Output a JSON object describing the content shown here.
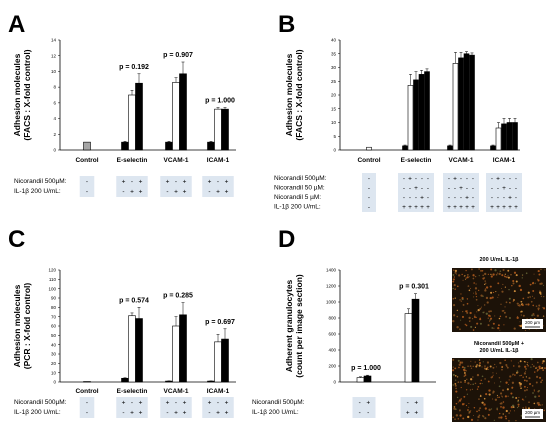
{
  "colors": {
    "white": "#ffffff",
    "black": "#000000",
    "gray": "#a6a6a6",
    "table_bg": "#dde6f0",
    "micro_bg": "#1c1208"
  },
  "panels": [
    {
      "letter": "A",
      "ylabel_lines": [
        "Adhesion molecules",
        "(FACS : X-fold control)"
      ],
      "conditions": [
        "Nicorandil 500µM:",
        "IL-1β 200 U/mL:"
      ],
      "chart_data": {
        "type": "bar",
        "ylim": [
          0,
          14
        ],
        "yticks": [
          0,
          2,
          4,
          6,
          8,
          10,
          12,
          14
        ],
        "groups": [
          {
            "label": "Control",
            "pvalue": "",
            "bars": [
              {
                "value": 1.0,
                "error": 0,
                "fill": "gray"
              }
            ],
            "signs": [
              [
                "-"
              ],
              [
                "-"
              ]
            ]
          },
          {
            "label": "E-selectin",
            "pvalue": "p = 0.192",
            "bars": [
              {
                "value": 1.0,
                "error": 0.1,
                "fill": "black"
              },
              {
                "value": 7.0,
                "error": 0.6,
                "fill": "white"
              },
              {
                "value": 8.5,
                "error": 1.2,
                "fill": "black"
              }
            ],
            "signs": [
              [
                "+",
                "-",
                "+"
              ],
              [
                "-",
                "+",
                "+"
              ]
            ]
          },
          {
            "label": "VCAM-1",
            "pvalue": "p = 0.907",
            "bars": [
              {
                "value": 1.0,
                "error": 0.1,
                "fill": "black"
              },
              {
                "value": 8.6,
                "error": 0.6,
                "fill": "white"
              },
              {
                "value": 9.7,
                "error": 1.5,
                "fill": "black"
              }
            ],
            "signs": [
              [
                "+",
                "-",
                "+"
              ],
              [
                "-",
                "+",
                "+"
              ]
            ]
          },
          {
            "label": "ICAM-1",
            "pvalue": "p = 1.000",
            "bars": [
              {
                "value": 1.0,
                "error": 0.1,
                "fill": "black"
              },
              {
                "value": 5.2,
                "error": 0.2,
                "fill": "white"
              },
              {
                "value": 5.2,
                "error": 0.2,
                "fill": "black"
              }
            ],
            "signs": [
              [
                "+",
                "-",
                "+"
              ],
              [
                "-",
                "+",
                "+"
              ]
            ]
          }
        ]
      }
    },
    {
      "letter": "B",
      "ylabel_lines": [
        "Adhesion molecules",
        "(FACS : X-fold control)"
      ],
      "conditions": [
        "Nicorandil 500µM:",
        "Nicorandil 50 µM:",
        "Nicorandil 5 µM:",
        "IL-1β 200 U/mL:"
      ],
      "chart_data": {
        "type": "bar",
        "ylim": [
          0,
          40
        ],
        "yticks": [
          0,
          5,
          10,
          15,
          20,
          25,
          30,
          35,
          40
        ],
        "groups": [
          {
            "label": "Control",
            "pvalue": "",
            "bars": [
              {
                "value": 1.0,
                "error": 0,
                "fill": "white"
              }
            ],
            "signs": [
              [
                "-"
              ],
              [
                "-"
              ],
              [
                "-"
              ],
              [
                "-"
              ]
            ]
          },
          {
            "label": "E-selectin",
            "pvalue": "",
            "bars": [
              {
                "value": 1.5,
                "error": 0.3,
                "fill": "black"
              },
              {
                "value": 23.5,
                "error": 4.0,
                "fill": "white"
              },
              {
                "value": 25.5,
                "error": 3.0,
                "fill": "black"
              },
              {
                "value": 27.5,
                "error": 1.5,
                "fill": "black"
              },
              {
                "value": 28.5,
                "error": 1.0,
                "fill": "black"
              }
            ],
            "signs": [
              [
                "-",
                "+",
                "-",
                "-",
                "-"
              ],
              [
                "-",
                "-",
                "+",
                "-",
                "-"
              ],
              [
                "-",
                "-",
                "-",
                "+",
                "-"
              ],
              [
                "+",
                "+",
                "+",
                "+",
                "+"
              ]
            ]
          },
          {
            "label": "VCAM-1",
            "pvalue": "",
            "bars": [
              {
                "value": 1.5,
                "error": 0.3,
                "fill": "black"
              },
              {
                "value": 31.5,
                "error": 4.0,
                "fill": "white"
              },
              {
                "value": 33.5,
                "error": 2.0,
                "fill": "black"
              },
              {
                "value": 35.0,
                "error": 0.8,
                "fill": "black"
              },
              {
                "value": 34.5,
                "error": 0.8,
                "fill": "black"
              }
            ],
            "signs": [
              [
                "-",
                "+",
                "-",
                "-",
                "-"
              ],
              [
                "-",
                "-",
                "+",
                "-",
                "-"
              ],
              [
                "-",
                "-",
                "-",
                "+",
                "-"
              ],
              [
                "+",
                "+",
                "+",
                "+",
                "+"
              ]
            ]
          },
          {
            "label": "ICAM-1",
            "pvalue": "",
            "bars": [
              {
                "value": 1.5,
                "error": 0.3,
                "fill": "black"
              },
              {
                "value": 8.0,
                "error": 2.0,
                "fill": "white"
              },
              {
                "value": 9.5,
                "error": 2.0,
                "fill": "black"
              },
              {
                "value": 10.0,
                "error": 1.5,
                "fill": "black"
              },
              {
                "value": 10.0,
                "error": 1.5,
                "fill": "black"
              }
            ],
            "signs": [
              [
                "-",
                "+",
                "-",
                "-",
                "-"
              ],
              [
                "-",
                "-",
                "+",
                "-",
                "-"
              ],
              [
                "-",
                "-",
                "-",
                "+",
                "-"
              ],
              [
                "+",
                "+",
                "+",
                "+",
                "+"
              ]
            ]
          }
        ]
      }
    },
    {
      "letter": "C",
      "ylabel_lines": [
        "Adhesion molecules",
        "(PCR : X-fold control)"
      ],
      "conditions": [
        "Nicorandil 500µM:",
        "IL-1β 200 U/mL:"
      ],
      "chart_data": {
        "type": "bar",
        "ylim": [
          0,
          120
        ],
        "yticks": [
          0,
          10,
          20,
          30,
          40,
          50,
          60,
          70,
          80,
          90,
          100,
          110,
          120
        ],
        "groups": [
          {
            "label": "Control",
            "pvalue": "",
            "bars": [
              {
                "value": 0.5,
                "error": 0,
                "fill": "gray"
              }
            ],
            "signs": [
              [
                "-"
              ],
              [
                "-"
              ]
            ]
          },
          {
            "label": "E-selectin",
            "pvalue": "p = 0.574",
            "bars": [
              {
                "value": 4.0,
                "error": 0.5,
                "fill": "black"
              },
              {
                "value": 71.0,
                "error": 3.0,
                "fill": "white"
              },
              {
                "value": 68.0,
                "error": 12.0,
                "fill": "black"
              }
            ],
            "signs": [
              [
                "+",
                "-",
                "+"
              ],
              [
                "-",
                "+",
                "+"
              ]
            ]
          },
          {
            "label": "VCAM-1",
            "pvalue": "p = 0.285",
            "bars": [
              {
                "value": 1.0,
                "error": 0.2,
                "fill": "black"
              },
              {
                "value": 60.0,
                "error": 10.0,
                "fill": "white"
              },
              {
                "value": 72.0,
                "error": 13.0,
                "fill": "black"
              }
            ],
            "signs": [
              [
                "+",
                "-",
                "+"
              ],
              [
                "-",
                "+",
                "+"
              ]
            ]
          },
          {
            "label": "ICAM-1",
            "pvalue": "p = 0.697",
            "bars": [
              {
                "value": 1.0,
                "error": 0.2,
                "fill": "black"
              },
              {
                "value": 43.0,
                "error": 8.0,
                "fill": "white"
              },
              {
                "value": 46.0,
                "error": 11.0,
                "fill": "black"
              }
            ],
            "signs": [
              [
                "+",
                "-",
                "+"
              ],
              [
                "-",
                "+",
                "+"
              ]
            ]
          }
        ]
      }
    },
    {
      "letter": "D",
      "ylabel_lines": [
        "Adherent granulocytes",
        "(count per image section)"
      ],
      "conditions": [
        "Nicorandil 500µM:",
        "IL-1β 200 U/mL:"
      ],
      "chart_data": {
        "type": "bar",
        "ylim": [
          0,
          1400
        ],
        "yticks": [
          0,
          200,
          400,
          600,
          800,
          1000,
          1200,
          1400
        ],
        "groups": [
          {
            "label": "",
            "pvalue": "p = 1.000",
            "bars": [
              {
                "value": 55,
                "error": 10,
                "fill": "white"
              },
              {
                "value": 75,
                "error": 10,
                "fill": "black"
              }
            ],
            "signs": [
              [
                "-",
                "+"
              ],
              [
                "-",
                "-"
              ]
            ]
          },
          {
            "label": "",
            "pvalue": "p = 0.301",
            "bars": [
              {
                "value": 855,
                "error": 60,
                "fill": "white"
              },
              {
                "value": 1035,
                "error": 70,
                "fill": "black"
              }
            ],
            "signs": [
              [
                "-",
                "+"
              ],
              [
                "+",
                "+"
              ]
            ]
          }
        ]
      }
    }
  ],
  "micrographs": [
    {
      "caption_lines": [
        "200 U/mL IL-1β"
      ],
      "scale_label": "200 µm"
    },
    {
      "caption_lines": [
        "Nicorandil 500µM +",
        "200 U/mL IL-1β"
      ],
      "scale_label": "200 µm"
    }
  ]
}
